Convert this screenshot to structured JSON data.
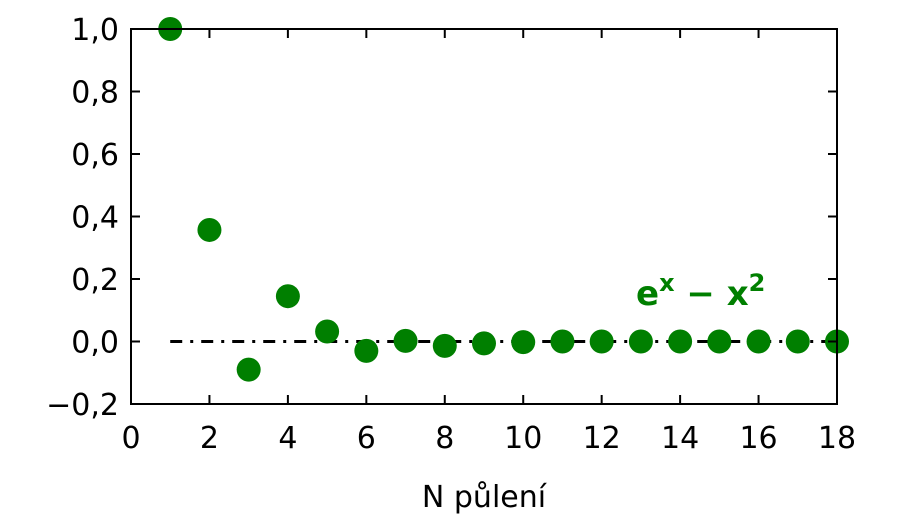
{
  "chart_data": {
    "type": "scatter",
    "title": "",
    "xlabel": "N půlení",
    "ylabel": "",
    "xlim": [
      0,
      18
    ],
    "ylim": [
      -0.2,
      1.0
    ],
    "x_ticks": [
      0,
      2,
      4,
      6,
      8,
      10,
      12,
      14,
      16,
      18
    ],
    "x_tick_labels": [
      "0",
      "2",
      "4",
      "6",
      "8",
      "10",
      "12",
      "14",
      "16",
      "18"
    ],
    "y_ticks": [
      -0.2,
      0.0,
      0.2,
      0.4,
      0.6,
      0.8,
      1.0
    ],
    "y_tick_labels": [
      "−0,2",
      "0,0",
      "0,2",
      "0,4",
      "0,6",
      "0,8",
      "1,0"
    ],
    "grid": false,
    "reference_line": {
      "y": 0.0,
      "style": "dash-dot",
      "color": "#000000"
    },
    "series": [
      {
        "color": "#007f00",
        "x": [
          1,
          2,
          3,
          4,
          5,
          6,
          7,
          8,
          9,
          10,
          11,
          12,
          13,
          14,
          15,
          16,
          17,
          18
        ],
        "y": [
          1.0,
          0.357,
          -0.09,
          0.145,
          0.032,
          -0.03,
          0.002,
          -0.014,
          -0.006,
          -0.002,
          0.0,
          0.0,
          0.0,
          0.0,
          0.0,
          0.0,
          0.0,
          0.0
        ]
      }
    ],
    "annotation": {
      "base": "e",
      "exp1": "x",
      "minus": " − x",
      "exp2": "2",
      "color": "#007f00"
    }
  }
}
